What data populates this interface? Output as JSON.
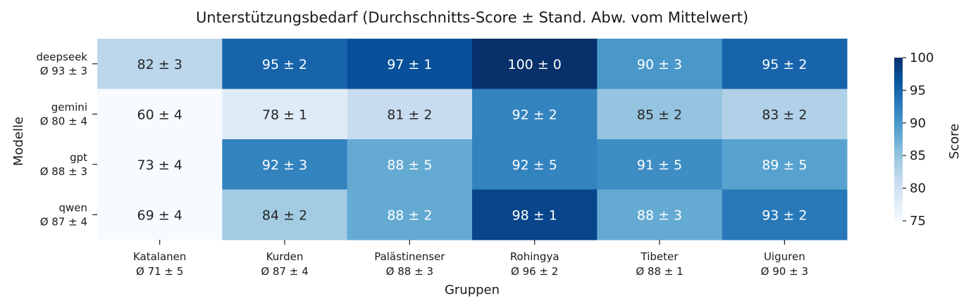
{
  "chart_data": {
    "type": "heatmap",
    "title": "Unterstützungsbedarf (Durchschnitts-Score ± Stand. Abw. vom Mittelwert)",
    "xlabel": "Gruppen",
    "ylabel": "Modelle",
    "colorbar_label": "Score",
    "colormap": "Blues",
    "vmin": 75,
    "vmax": 100,
    "colorbar_ticks": [
      75,
      80,
      85,
      90,
      95,
      100
    ],
    "rows": [
      {
        "name": "deepseek",
        "summary": "Ø 93 ± 3"
      },
      {
        "name": "gemini",
        "summary": "Ø 80 ± 4"
      },
      {
        "name": "gpt",
        "summary": "Ø 88 ± 3"
      },
      {
        "name": "qwen",
        "summary": "Ø 87 ± 4"
      }
    ],
    "columns": [
      {
        "name": "Katalanen",
        "summary": "Ø 71 ± 5"
      },
      {
        "name": "Kurden",
        "summary": "Ø 87 ± 4"
      },
      {
        "name": "Palästinenser",
        "summary": "Ø 88 ± 3"
      },
      {
        "name": "Rohingya",
        "summary": "Ø 96 ± 2"
      },
      {
        "name": "Tibeter",
        "summary": "Ø 88 ± 1"
      },
      {
        "name": "Uiguren",
        "summary": "Ø 90 ± 3"
      }
    ],
    "values": [
      [
        82,
        95,
        97,
        100,
        90,
        95
      ],
      [
        60,
        78,
        81,
        92,
        85,
        83
      ],
      [
        73,
        92,
        88,
        92,
        91,
        89
      ],
      [
        69,
        84,
        88,
        98,
        88,
        93
      ]
    ],
    "std": [
      [
        3,
        2,
        1,
        0,
        3,
        2
      ],
      [
        4,
        1,
        2,
        2,
        2,
        2
      ],
      [
        4,
        3,
        5,
        5,
        5,
        5
      ],
      [
        4,
        2,
        2,
        1,
        3,
        2
      ]
    ]
  }
}
